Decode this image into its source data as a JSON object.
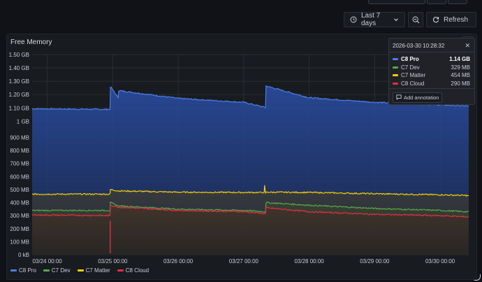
{
  "toolbar": {
    "time_range_label": "Last 7 days",
    "refresh_label": "Refresh"
  },
  "panel": {
    "title": "Free Memory"
  },
  "tooltip": {
    "timestamp": "2026-03-30 10:28:32",
    "rows": [
      {
        "name": "C8 Pro",
        "value": "1.14 GB",
        "color": "#4a7ee8"
      },
      {
        "name": "C7 Dev",
        "value": "329 MB",
        "color": "#5aa64b"
      },
      {
        "name": "C7 Matter",
        "value": "454 MB",
        "color": "#f2cc0c"
      },
      {
        "name": "C8 Cloud",
        "value": "290 MB",
        "color": "#e02f44"
      }
    ],
    "annotation_label": "Add annotation"
  },
  "chart_data": {
    "type": "area",
    "title": "Free Memory",
    "y_unit": "MB",
    "ylim": [
      0,
      1536
    ],
    "y_ticks": [
      {
        "value": 0,
        "label": "0 kB"
      },
      {
        "value": 100,
        "label": "100 MB"
      },
      {
        "value": 200,
        "label": "200 MB"
      },
      {
        "value": 300,
        "label": "300 MB"
      },
      {
        "value": 400,
        "label": "400 MB"
      },
      {
        "value": 500,
        "label": "500 MB"
      },
      {
        "value": 600,
        "label": "600 MB"
      },
      {
        "value": 700,
        "label": "700 MB"
      },
      {
        "value": 800,
        "label": "800 MB"
      },
      {
        "value": 900,
        "label": "900 MB"
      },
      {
        "value": 1024,
        "label": "1 GB"
      },
      {
        "value": 1126,
        "label": "1.10 GB"
      },
      {
        "value": 1229,
        "label": "1.20 GB"
      },
      {
        "value": 1331,
        "label": "1.30 GB"
      },
      {
        "value": 1434,
        "label": "1.40 GB"
      },
      {
        "value": 1536,
        "label": "1.50 GB"
      }
    ],
    "x_range": [
      "03/23 18:28",
      "03/30 10:28"
    ],
    "x_ticks": [
      "03/24 00:00",
      "03/25 00:00",
      "03/26 00:00",
      "03/27 00:00",
      "03/28 00:00",
      "03/29 00:00",
      "03/30 00:00"
    ],
    "grid": true,
    "legend": "bottom-left",
    "series": [
      {
        "name": "C8 Pro",
        "color": "#4a7ee8",
        "x": [
          "03/23 18:28",
          "03/24 23:00",
          "03/24 23:10",
          "03/25 02:00",
          "03/25 02:10",
          "03/26 00:00",
          "03/27 00:00",
          "03/27 08:00",
          "03/27 08:10",
          "03/28 00:00",
          "03/29 00:00",
          "03/30 00:00",
          "03/30 10:28"
        ],
        "values": [
          1120,
          1115,
          1290,
          1205,
          1260,
          1200,
          1170,
          1130,
          1295,
          1205,
          1170,
          1150,
          1140
        ]
      },
      {
        "name": "C7 Matter",
        "color": "#f2cc0c",
        "x": [
          "03/23 18:28",
          "03/24 23:00",
          "03/24 23:10",
          "03/25 02:00",
          "03/26 00:00",
          "03/27 00:00",
          "03/27 07:30",
          "03/27 07:40",
          "03/27 08:00",
          "03/27 08:10",
          "03/28 00:00",
          "03/29 00:00",
          "03/30 00:00",
          "03/30 10:28"
        ],
        "values": [
          465,
          465,
          500,
          490,
          480,
          478,
          478,
          530,
          470,
          480,
          478,
          468,
          460,
          454
        ]
      },
      {
        "name": "C7 Dev",
        "color": "#5aa64b",
        "x": [
          "03/23 18:28",
          "03/24 23:00",
          "03/24 23:10",
          "03/25 02:00",
          "03/26 00:00",
          "03/27 00:00",
          "03/27 08:00",
          "03/27 08:10",
          "03/28 00:00",
          "03/29 00:00",
          "03/30 00:00",
          "03/30 10:28"
        ],
        "values": [
          340,
          340,
          400,
          375,
          350,
          340,
          330,
          400,
          380,
          355,
          340,
          329
        ]
      },
      {
        "name": "C8 Cloud",
        "color": "#e02f44",
        "x": [
          "03/23 18:28",
          "03/24 23:00",
          "03/24 23:10",
          "03/25 02:00",
          "03/26 00:00",
          "03/27 00:00",
          "03/27 08:00",
          "03/27 08:10",
          "03/28 00:00",
          "03/29 00:00",
          "03/30 00:00",
          "03/30 10:28"
        ],
        "values": [
          305,
          300,
          380,
          365,
          340,
          330,
          315,
          360,
          330,
          310,
          300,
          290
        ]
      }
    ]
  }
}
